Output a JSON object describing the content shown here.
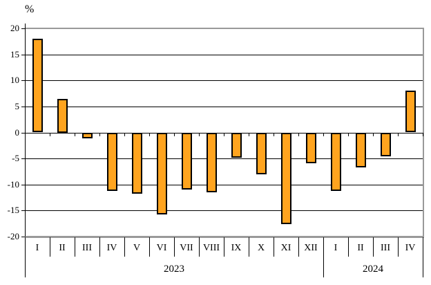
{
  "chart_data": {
    "type": "bar",
    "title": "",
    "ylabel": "%",
    "xlabel": "",
    "categories": [
      "I",
      "II",
      "III",
      "IV",
      "V",
      "VI",
      "VII",
      "VIII",
      "IX",
      "X",
      "XI",
      "XII",
      "I",
      "II",
      "III",
      "IV"
    ],
    "values": [
      18,
      6.5,
      -1,
      -11.1,
      -11.7,
      -15.7,
      -10.9,
      -11.4,
      -4.8,
      -8,
      -17.5,
      -5.9,
      -11.1,
      -6.6,
      -4.5,
      8
    ],
    "groups": [
      {
        "label": "2023",
        "start": 0,
        "end": 11
      },
      {
        "label": "2024",
        "start": 12,
        "end": 15
      }
    ],
    "ylim": [
      -20,
      20
    ],
    "ytick_step": 5,
    "yticks": [
      "20",
      "15",
      "10",
      "5",
      "0",
      "-5",
      "-10",
      "-15",
      "-20"
    ],
    "grid": true,
    "legend": false,
    "colors": {
      "bar_fill": "#FFA41F",
      "bar_border": "#000000",
      "frame": "#999999",
      "gridline": "#000000",
      "text": "#000000",
      "background": "#FFFFFF"
    }
  }
}
